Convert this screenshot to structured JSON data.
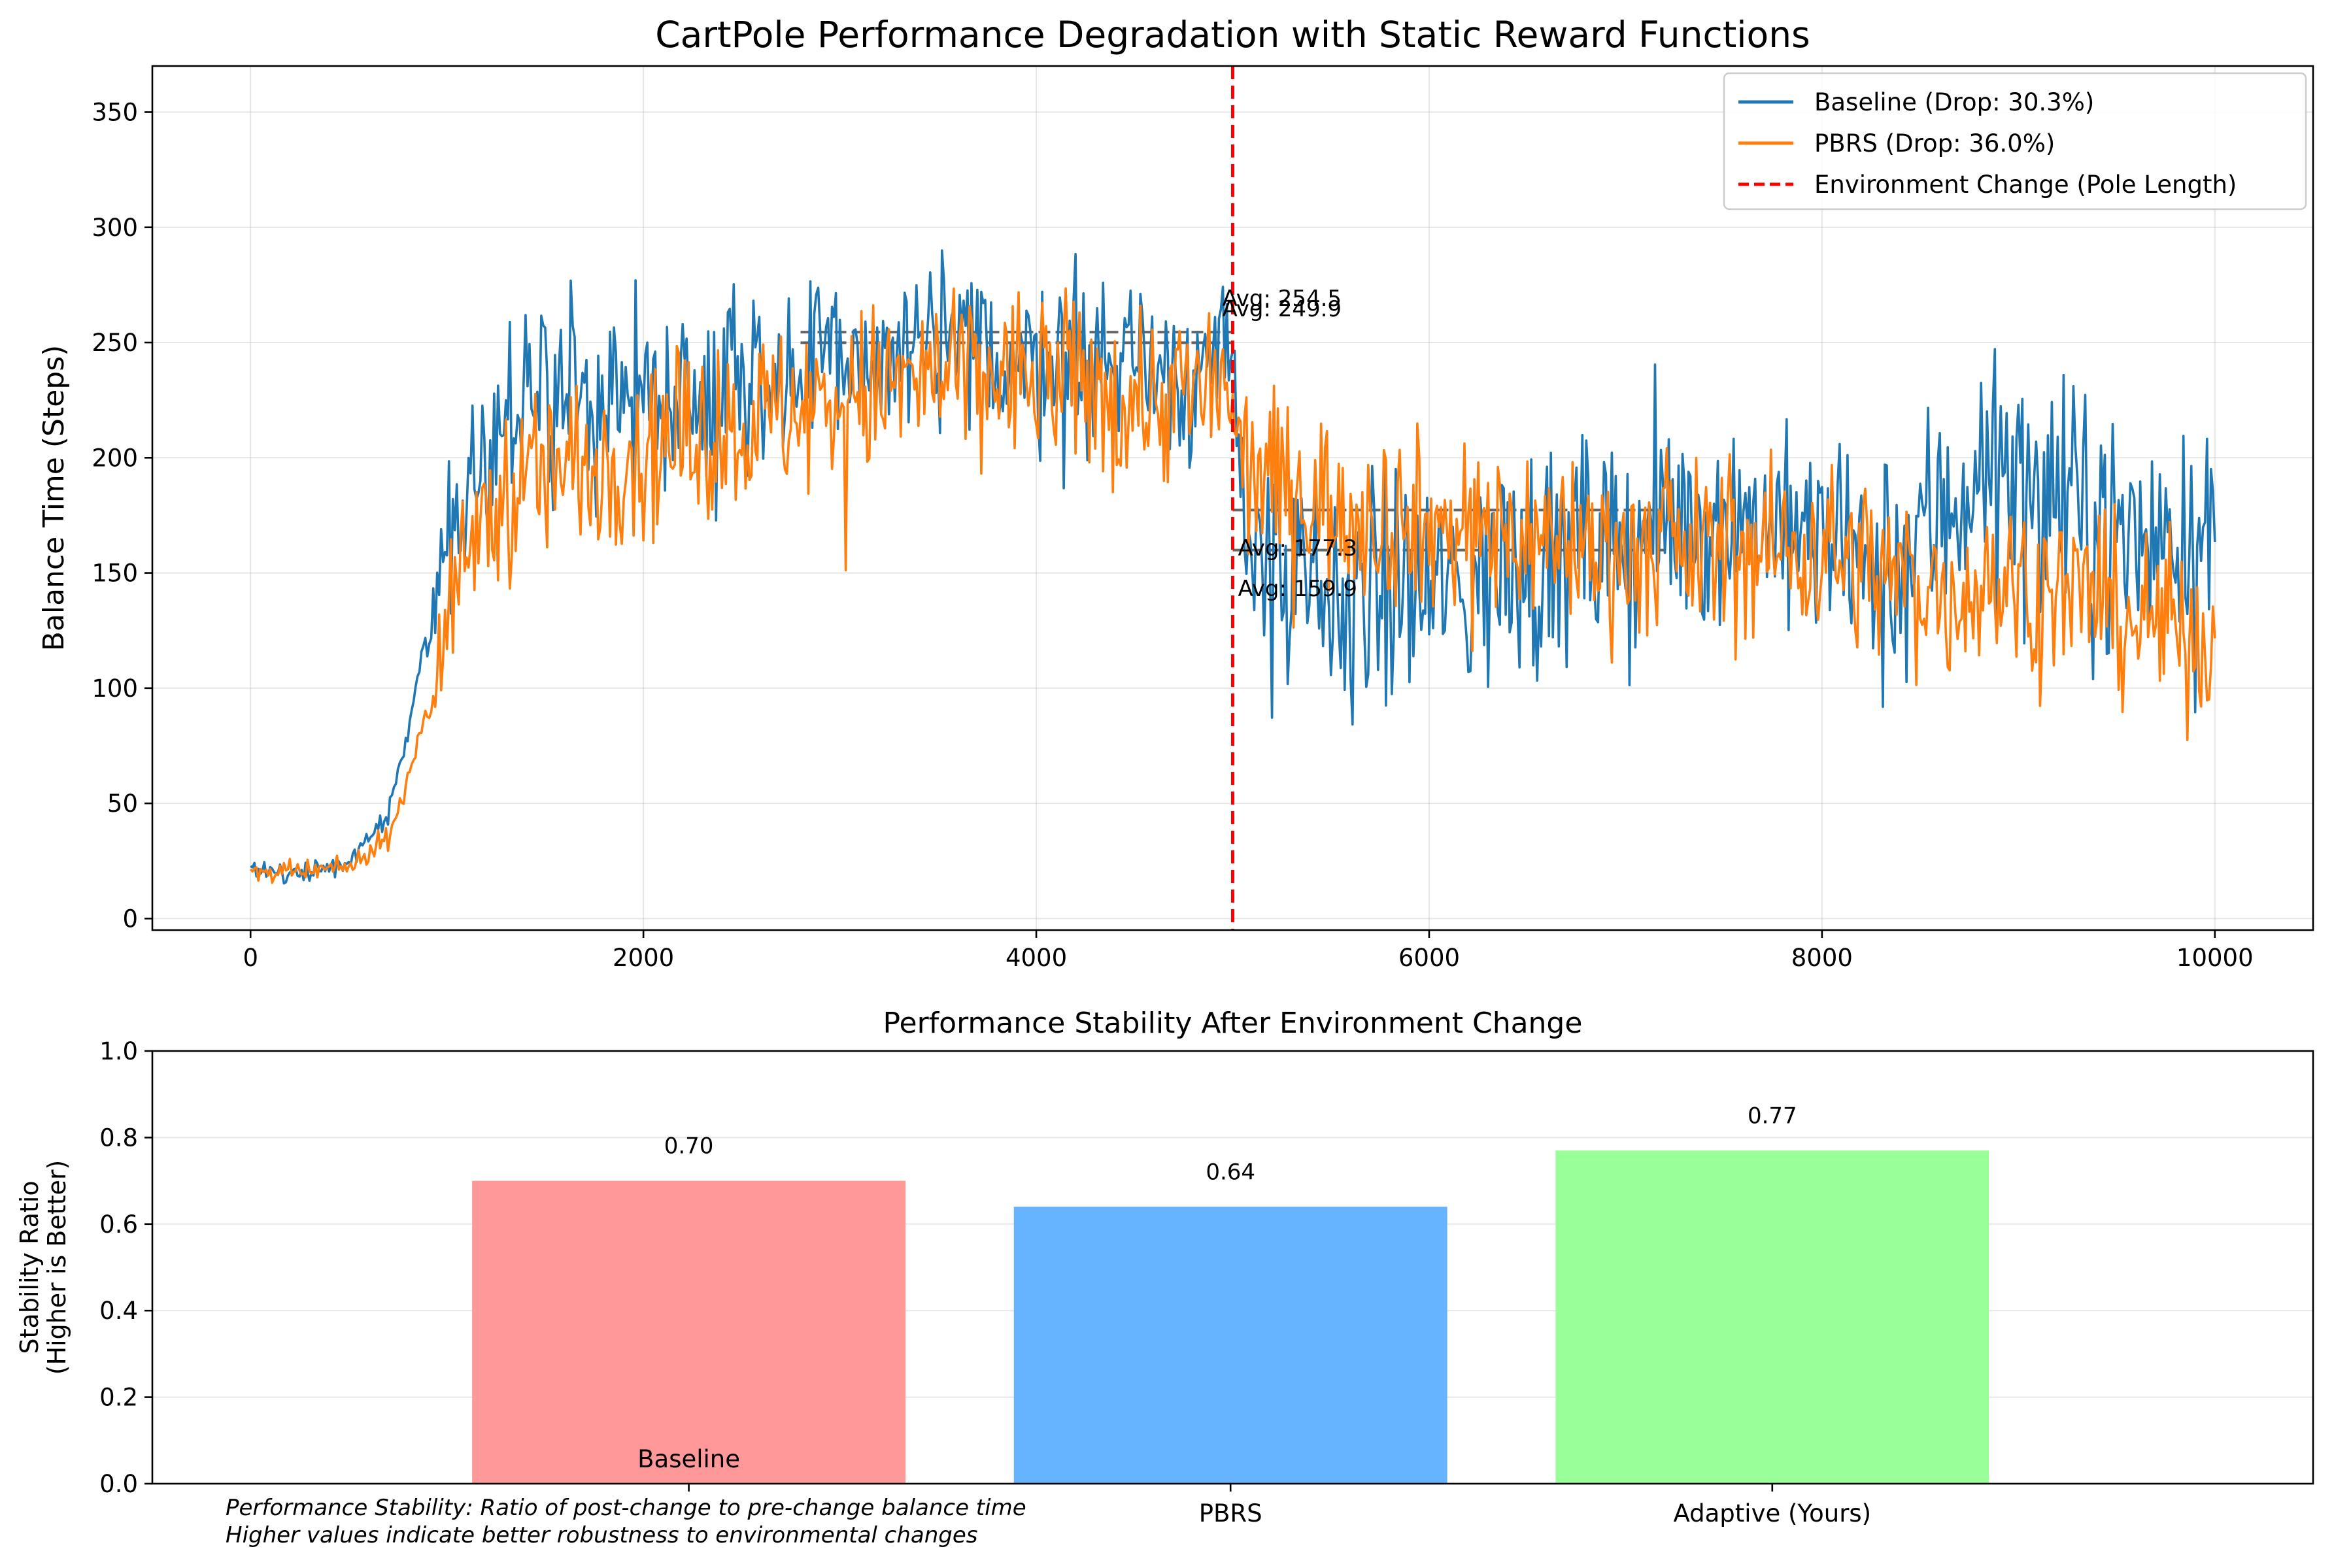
{
  "figure": {
    "caption_lines": [
      "Performance Stability: Ratio of post-change to pre-change balance time",
      "Higher values indicate better robustness to environmental changes"
    ]
  },
  "chart_data": [
    {
      "type": "line",
      "title": "CartPole Performance Degradation with Static Reward Functions",
      "xlabel": "",
      "ylabel": "Balance Time (Steps)",
      "xlim": [
        -500,
        10500
      ],
      "ylim": [
        -5,
        370
      ],
      "xticks": [
        0,
        2000,
        4000,
        6000,
        8000,
        10000
      ],
      "yticks": [
        0,
        50,
        100,
        150,
        200,
        250,
        300,
        350
      ],
      "grid": true,
      "legend_position": "upper right",
      "series": [
        {
          "name": "Baseline (Drop: 30.3%)",
          "color": "#1f77b4",
          "x": [
            0,
            250,
            500,
            700,
            800,
            950,
            1100,
            1300,
            1600,
            2000,
            2500,
            3000,
            3500,
            4000,
            4500,
            4990,
            5010,
            5200,
            5500,
            5800,
            6000,
            6300,
            6600,
            7000,
            7300,
            7600,
            8000,
            8300,
            8600,
            8800,
            9000,
            9300,
            9600,
            10000
          ],
          "values": [
            20,
            20,
            25,
            45,
            80,
            150,
            190,
            215,
            225,
            230,
            235,
            240,
            245,
            245,
            240,
            240,
            200,
            150,
            130,
            145,
            140,
            150,
            155,
            165,
            170,
            175,
            165,
            145,
            175,
            195,
            190,
            175,
            165,
            165
          ]
        },
        {
          "name": "PBRS (Drop: 36.0%)",
          "color": "#ff7f0e",
          "x": [
            0,
            250,
            500,
            700,
            800,
            950,
            1100,
            1300,
            1600,
            2000,
            2500,
            3000,
            3500,
            4000,
            4500,
            4990,
            5010,
            5200,
            5500,
            5800,
            6000,
            6300,
            6600,
            7000,
            7300,
            7600,
            8000,
            8300,
            8600,
            8800,
            9000,
            9300,
            9600,
            10000
          ],
          "values": [
            20,
            20,
            22,
            35,
            60,
            110,
            160,
            185,
            195,
            205,
            215,
            225,
            235,
            235,
            225,
            230,
            200,
            190,
            180,
            175,
            170,
            170,
            165,
            160,
            160,
            160,
            160,
            150,
            140,
            145,
            145,
            140,
            130,
            120
          ]
        },
        {
          "name": "Environment Change (Pole Length)",
          "color": "#ff0000",
          "style": "dashed",
          "x": [
            5000,
            5000
          ],
          "values": [
            -5,
            370
          ]
        }
      ],
      "reference_segments": [
        {
          "x": [
            2800,
            5000
          ],
          "value": 254.5,
          "label": "Avg: 254.5",
          "style": "dashed"
        },
        {
          "x": [
            2800,
            5000
          ],
          "value": 249.9,
          "label": "Avg: 249.9",
          "style": "dashed"
        },
        {
          "x": [
            5000,
            7200
          ],
          "value": 177.3,
          "label": "Avg: 177.3",
          "style": "dashed"
        },
        {
          "x": [
            5000,
            7200
          ],
          "value": 159.9,
          "label": "Avg: 159.9",
          "style": "dashed"
        }
      ]
    },
    {
      "type": "bar",
      "title": "Performance Stability After Environment Change",
      "xlabel": "",
      "ylabel": "Stability Ratio\n(Higher is Better)",
      "ylim": [
        0,
        1.0
      ],
      "yticks": [
        0.0,
        0.2,
        0.4,
        0.6,
        0.8,
        1.0
      ],
      "grid": true,
      "categories": [
        "Baseline",
        "PBRS",
        "Adaptive (Yours)"
      ],
      "values": [
        0.7,
        0.64,
        0.77
      ],
      "colors": [
        "#ff9999",
        "#66b3ff",
        "#99ff99"
      ]
    }
  ]
}
